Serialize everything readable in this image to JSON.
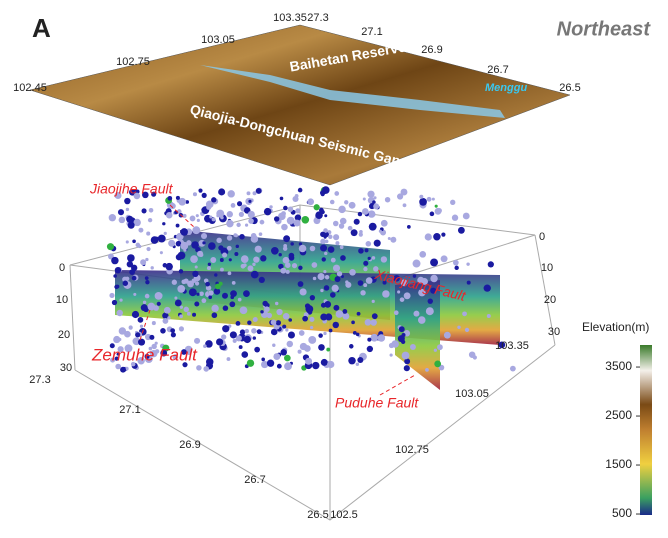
{
  "panel_label": "A",
  "view": "Northeast",
  "map_labels": {
    "reservoir": "Baihetan Reservoir",
    "seismic_gap": "Qiaojia-Dongchuan Seismic Gap",
    "town": "Menggu"
  },
  "faults": [
    "Jiaojihe Fault",
    "Xiaojiang Fault",
    "Zemuhe Fault",
    "Puduhe Fault"
  ],
  "top_ticks": [
    "102.45",
    "102.75",
    "103.05",
    "103.35",
    "27.3",
    "27.1",
    "26.9",
    "26.7",
    "26.5"
  ],
  "depth_ticks_left": [
    "0",
    "10",
    "20",
    "30"
  ],
  "depth_ticks_right": [
    "0",
    "10",
    "20",
    "30"
  ],
  "bottom_lat_ticks": [
    "27.3",
    "27.1",
    "26.9",
    "26.7",
    "26.5"
  ],
  "bottom_lon_ticks": [
    "102.5",
    "102.75",
    "103.05",
    "103.35"
  ],
  "colorbar": {
    "title": "Elevation(m)",
    "range": [
      480,
      3950
    ],
    "ticks": [
      500,
      1500,
      2500,
      3500
    ]
  }
}
